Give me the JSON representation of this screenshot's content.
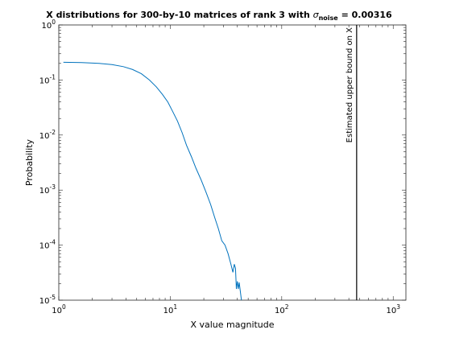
{
  "chart_data": {
    "type": "line",
    "title_main": "X distributions for 300-by-10  matrices of rank 3 with ",
    "title_sigma": "σ",
    "title_subscript": "noise",
    "title_value": " = 0.00316",
    "xlabel": "X value magnitude",
    "ylabel": "Probability",
    "xscale": "log",
    "yscale": "log",
    "xlim": [
      1,
      1300
    ],
    "ylim": [
      1e-05,
      1
    ],
    "x_tick_values": [
      1,
      10,
      100,
      1000
    ],
    "y_tick_values": [
      1e-05,
      0.0001,
      0.001,
      0.01,
      0.1,
      1
    ],
    "x_tick_labels": [
      {
        "base": "10",
        "exp": "0"
      },
      {
        "base": "10",
        "exp": "1"
      },
      {
        "base": "10",
        "exp": "2"
      },
      {
        "base": "10",
        "exp": "3"
      }
    ],
    "y_tick_labels": [
      {
        "base": "10",
        "exp": "-5"
      },
      {
        "base": "10",
        "exp": "-4"
      },
      {
        "base": "10",
        "exp": "-3"
      },
      {
        "base": "10",
        "exp": "-2"
      },
      {
        "base": "10",
        "exp": "-1"
      },
      {
        "base": "10",
        "exp": "0"
      }
    ],
    "grid": false,
    "series": [
      {
        "color": "#0072bd",
        "x": [
          1.1,
          1.6,
          2.3,
          3.0,
          3.8,
          4.6,
          5.5,
          6.5,
          7.5,
          8.5,
          9.5,
          10.5,
          11.6,
          12.8,
          14.0,
          15.5,
          17.0,
          19.0,
          21.0,
          23.0,
          25.0,
          27.0,
          29.0,
          31.0,
          33.0,
          35.0,
          36.5,
          37.5,
          38.5,
          39.2,
          40.0,
          40.8,
          41.5,
          42.1,
          42.8,
          43.5
        ],
        "y": [
          0.21,
          0.207,
          0.2,
          0.19,
          0.175,
          0.155,
          0.13,
          0.1,
          0.075,
          0.055,
          0.04,
          0.027,
          0.018,
          0.011,
          0.0065,
          0.004,
          0.0025,
          0.0015,
          0.0009,
          0.00055,
          0.00032,
          0.0002,
          0.00012,
          0.0001,
          7e-05,
          4.5e-05,
          3.2e-05,
          4.5e-05,
          3.8e-05,
          1.6e-05,
          2.2e-05,
          1.6e-05,
          2.1e-05,
          1.7e-05,
          1.3e-05,
          1e-05
        ]
      }
    ],
    "annotation": {
      "text": "Estimated upper bound on X",
      "x": 470,
      "color": "#000000"
    }
  }
}
